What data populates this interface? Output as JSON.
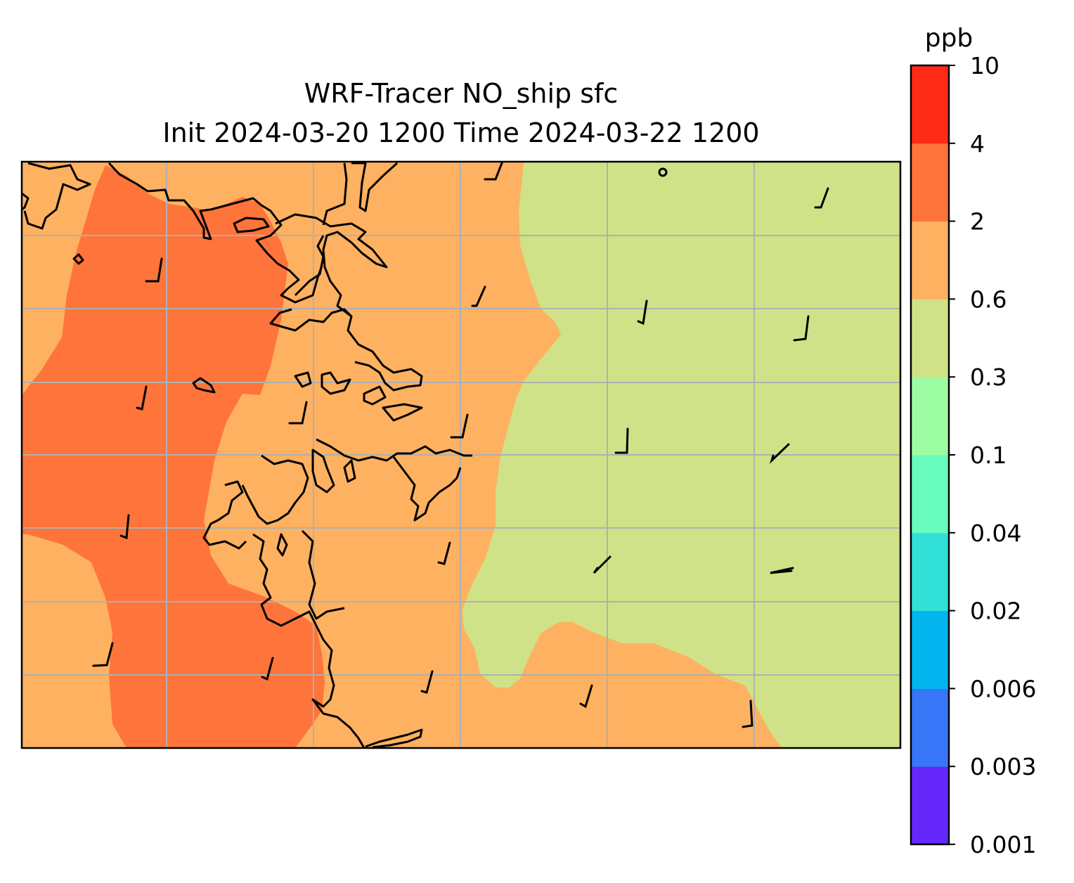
{
  "title": {
    "line1": "WRF-Tracer NO_ship sfc",
    "line2": "Init 2024-03-20 1200 Time 2024-03-22 1200"
  },
  "colorbar": {
    "unit": "ppb",
    "levels": [
      "0.001",
      "0.003",
      "0.006",
      "0.02",
      "0.04",
      "0.1",
      "0.3",
      "0.6",
      "2",
      "4",
      "10"
    ],
    "colors": [
      "#6528fa",
      "#3776f6",
      "#02b5ef",
      "#31e1d8",
      "#69fcbf",
      "#9dfda3",
      "#cfe287",
      "#feb160",
      "#fe743a",
      "#fe2b17"
    ]
  },
  "map_fill_colors": {
    "band_0_3_to_0_6": "#cfe287",
    "band_0_6_to_2": "#feb160",
    "band_2_to_4": "#fe743a"
  },
  "gridline_color": "#b0b0b0"
}
